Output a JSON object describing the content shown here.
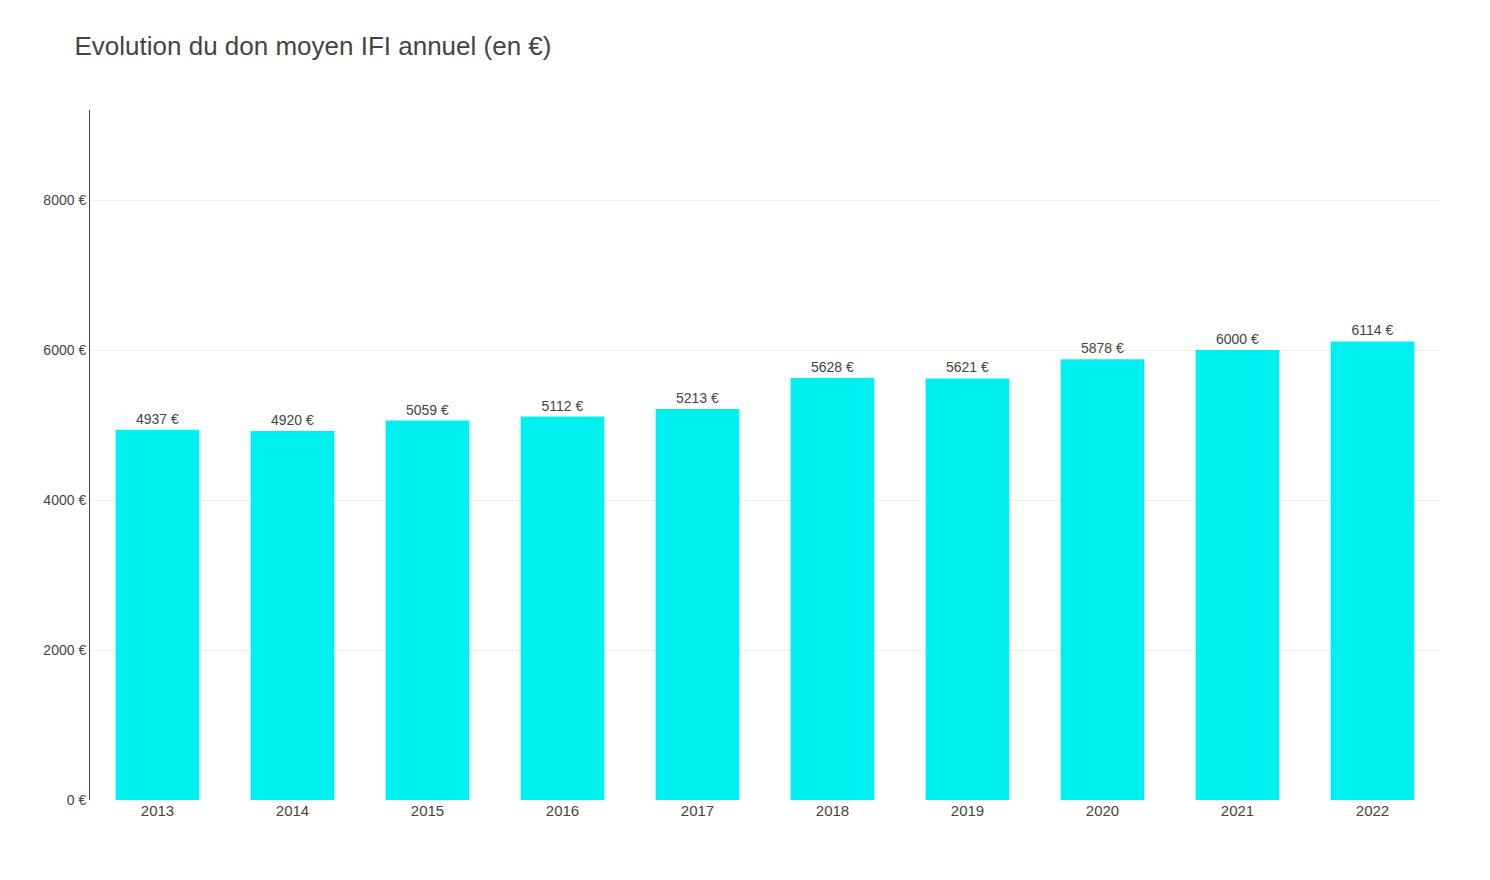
{
  "chart_data": {
    "type": "bar",
    "title": "Evolution du don moyen IFI annuel (en €)",
    "categories": [
      "2013",
      "2014",
      "2015",
      "2016",
      "2017",
      "2018",
      "2019",
      "2020",
      "2021",
      "2022"
    ],
    "values": [
      4937,
      4920,
      5059,
      5112,
      5213,
      5628,
      5621,
      5878,
      6000,
      6114
    ],
    "value_labels": [
      "4937 €",
      "4920 €",
      "5059 €",
      "5112 €",
      "5213 €",
      "5628 €",
      "5621 €",
      "5878 €",
      "6000 €",
      "6114 €"
    ],
    "data_labels": true,
    "color": "#00EFEF",
    "ylim": [
      0,
      9200
    ],
    "yticks": [
      {
        "value": 0,
        "label": "0 €"
      },
      {
        "value": 2000,
        "label": "2000 €"
      },
      {
        "value": 4000,
        "label": "4000 €"
      },
      {
        "value": 6000,
        "label": "6000 €"
      },
      {
        "value": 8000,
        "label": "8000 €"
      }
    ],
    "grid": true
  }
}
